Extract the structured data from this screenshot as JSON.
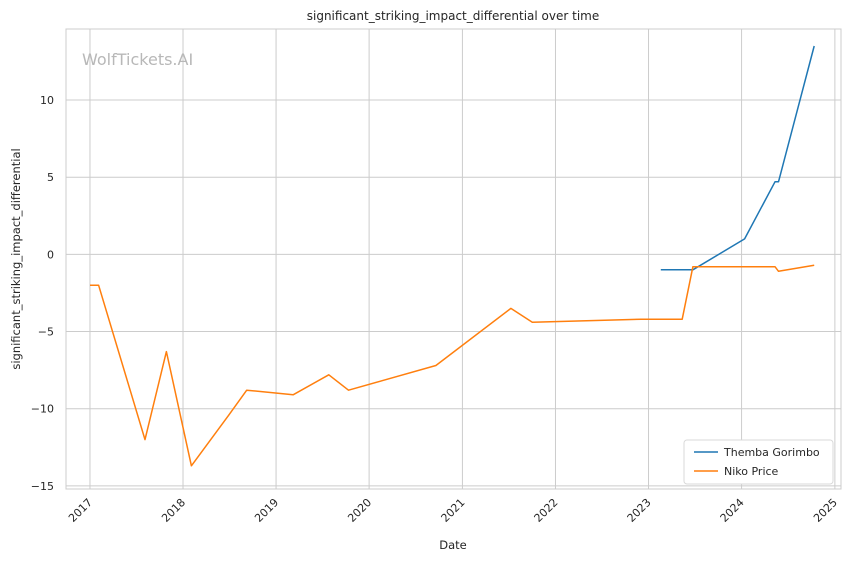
{
  "chart_data": {
    "type": "line",
    "title": "significant_striking_impact_differential over time",
    "xlabel": "Date",
    "ylabel": "significant_striking_impact_differential",
    "watermark": "WolfTickets.AI",
    "x_ticks": [
      "2017",
      "2018",
      "2019",
      "2020",
      "2021",
      "2022",
      "2023",
      "2024",
      "2025"
    ],
    "y_ticks": [
      "10",
      "5",
      "0",
      "−5",
      "−10",
      "−15"
    ],
    "y_tick_values": [
      10,
      5,
      0,
      -5,
      -10,
      -15
    ],
    "xlim": [
      "2016-09-29",
      "2025-01-25"
    ],
    "ylim": [
      -15.2,
      14.6
    ],
    "grid": true,
    "legend_position": "lower-right",
    "series": [
      {
        "name": "Themba Gorimbo",
        "color": "#1f77b4",
        "points": [
          {
            "date": "2023-02-18",
            "value": -1.0
          },
          {
            "date": "2023-06-24",
            "value": -1.0
          },
          {
            "date": "2024-01-13",
            "value": 1.0
          },
          {
            "date": "2024-05-11",
            "value": 4.7
          },
          {
            "date": "2024-05-25",
            "value": 4.7
          },
          {
            "date": "2024-10-12",
            "value": 13.5
          }
        ]
      },
      {
        "name": "Niko Price",
        "color": "#ff7f0e",
        "points": [
          {
            "date": "2017-01-01",
            "value": -2.0
          },
          {
            "date": "2017-02-04",
            "value": -2.0
          },
          {
            "date": "2017-08-05",
            "value": -12.0
          },
          {
            "date": "2017-10-28",
            "value": -6.3
          },
          {
            "date": "2018-02-03",
            "value": -13.7
          },
          {
            "date": "2018-06-30",
            "value": -10.4
          },
          {
            "date": "2018-09-08",
            "value": -8.8
          },
          {
            "date": "2019-03-09",
            "value": -9.1
          },
          {
            "date": "2019-07-27",
            "value": -7.8
          },
          {
            "date": "2019-10-12",
            "value": -8.8
          },
          {
            "date": "2020-09-19",
            "value": -7.2
          },
          {
            "date": "2021-07-10",
            "value": -3.5
          },
          {
            "date": "2021-10-02",
            "value": -4.4
          },
          {
            "date": "2022-12-03",
            "value": -4.2
          },
          {
            "date": "2023-05-13",
            "value": -4.2
          },
          {
            "date": "2023-06-24",
            "value": -0.8
          },
          {
            "date": "2024-05-11",
            "value": -0.8
          },
          {
            "date": "2024-05-25",
            "value": -1.1
          },
          {
            "date": "2024-10-12",
            "value": -0.7
          }
        ]
      }
    ]
  }
}
